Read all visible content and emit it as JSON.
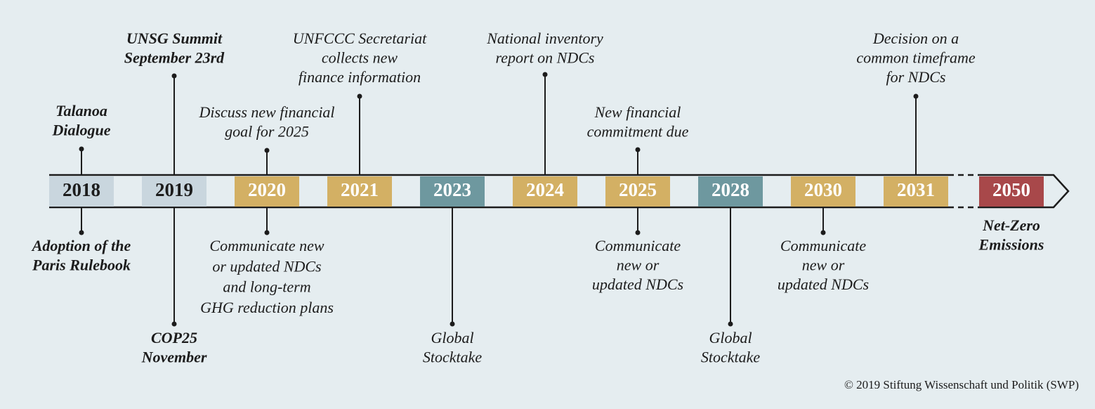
{
  "years": [
    {
      "label": "2018",
      "above": [
        "Talanoa",
        "Dialogue"
      ],
      "below": [
        "Adoption of the",
        "Paris Rulebook"
      ]
    },
    {
      "label": "2019",
      "above": [
        "UNSG Summit",
        "September 23rd"
      ],
      "below": [
        "COP25",
        "November"
      ]
    },
    {
      "label": "2020",
      "above": [
        "Discuss new financial",
        "goal for 2025"
      ],
      "below": [
        "Communicate new",
        "or updated NDCs",
        "and long-term",
        "GHG reduction plans"
      ]
    },
    {
      "label": "2021",
      "above": [
        "UNFCCC Secretariat",
        "collects new",
        "finance information"
      ]
    },
    {
      "label": "2023",
      "below": [
        "Global",
        "Stocktake"
      ]
    },
    {
      "label": "2024",
      "above": [
        "National inventory",
        "report on NDCs"
      ]
    },
    {
      "label": "2025",
      "above": [
        "New financial",
        "commitment due"
      ],
      "below": [
        "Communicate",
        "new or",
        "updated NDCs"
      ]
    },
    {
      "label": "2028",
      "below": [
        "Global",
        "Stocktake"
      ]
    },
    {
      "label": "2030",
      "below": [
        "Communicate",
        "new or",
        "updated NDCs"
      ]
    },
    {
      "label": "2031",
      "above": [
        "Decision on a",
        "common timeframe",
        "for NDCs"
      ]
    },
    {
      "label": "2050",
      "below": [
        "Net-Zero",
        "Emissions"
      ]
    }
  ],
  "copyright": "© 2019 Stiftung Wissenschaft und Politik (SWP)"
}
